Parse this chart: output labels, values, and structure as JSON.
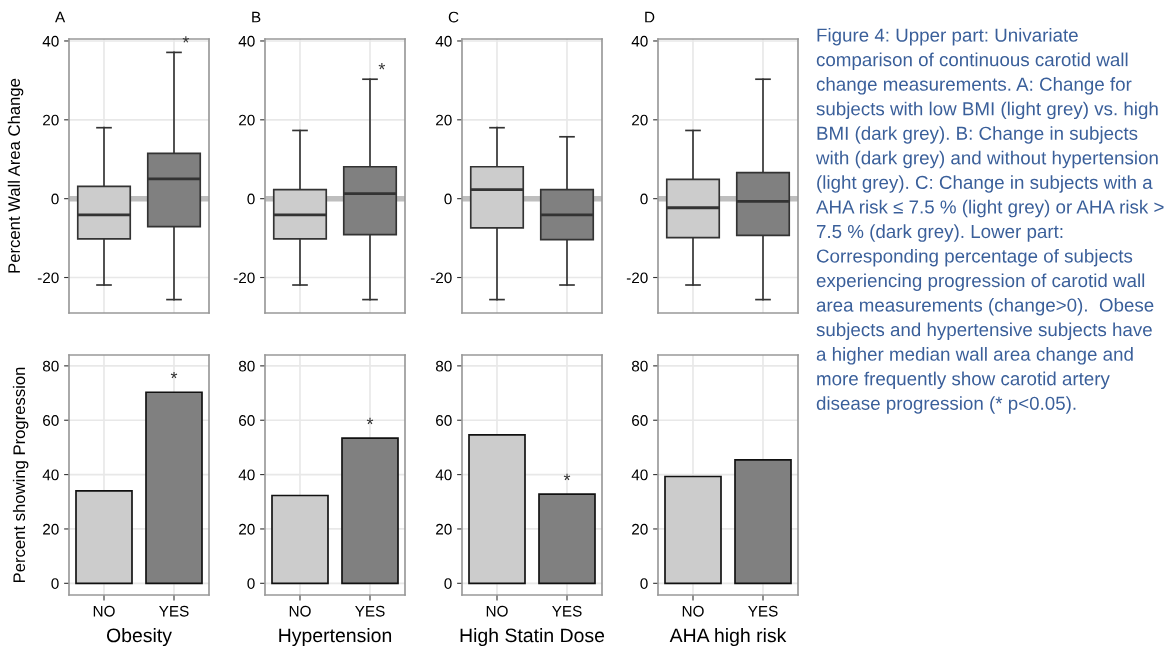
{
  "chart_data": [
    {
      "type": "box",
      "title": "A",
      "ylabel": "Percent Wall Area Change",
      "categories": [
        "NO",
        "YES"
      ],
      "colors": [
        "#cccccc",
        "#808080"
      ],
      "boxes": [
        {
          "low": -21.9,
          "q1": -10.2,
          "median": -4.1,
          "q3": 3.1,
          "high": 18
        },
        {
          "low": -25.6,
          "q1": -7.1,
          "median": 5,
          "q3": 11.5,
          "high": 37.1
        }
      ],
      "ylim": [
        -29,
        40.5
      ],
      "yticks": [
        -20,
        0,
        20,
        40
      ],
      "grid": true,
      "tick_labels": "y",
      "ref_lines": [
        {
          "axis": "y",
          "value": 0,
          "color": "#bebebe"
        }
      ],
      "annotations": [
        {
          "text": "*",
          "x": "YES",
          "y": 37.1
        }
      ]
    },
    {
      "type": "box",
      "title": "B",
      "categories": [
        "NO",
        "YES"
      ],
      "colors": [
        "#cccccc",
        "#808080"
      ],
      "boxes": [
        {
          "low": -21.9,
          "q1": -10.2,
          "median": -4.1,
          "q3": 2.3,
          "high": 17.3
        },
        {
          "low": -25.6,
          "q1": -9.1,
          "median": 1.3,
          "q3": 8.1,
          "high": 30.3
        }
      ],
      "ylim": [
        -29,
        40.5
      ],
      "yticks": [
        -20,
        0,
        20,
        40
      ],
      "grid": true,
      "tick_labels": "y",
      "ref_lines": [
        {
          "axis": "y",
          "value": 0,
          "color": "#bebebe"
        }
      ],
      "annotations": [
        {
          "text": "*",
          "x": "YES",
          "y": 30.3
        }
      ]
    },
    {
      "type": "box",
      "title": "C",
      "categories": [
        "NO",
        "YES"
      ],
      "colors": [
        "#cccccc",
        "#808080"
      ],
      "boxes": [
        {
          "low": -25.6,
          "q1": -7.4,
          "median": 2.3,
          "q3": 8.1,
          "high": 18
        },
        {
          "low": -21.9,
          "q1": -10.4,
          "median": -4.1,
          "q3": 2.3,
          "high": 15.7
        }
      ],
      "ylim": [
        -29,
        40.5
      ],
      "yticks": [
        -20,
        0,
        20,
        40
      ],
      "grid": true,
      "tick_labels": "y",
      "ref_lines": [
        {
          "axis": "y",
          "value": 0,
          "color": "#bebebe"
        }
      ]
    },
    {
      "type": "box",
      "title": "D",
      "categories": [
        "NO",
        "YES"
      ],
      "colors": [
        "#cccccc",
        "#808080"
      ],
      "boxes": [
        {
          "low": -21.9,
          "q1": -9.9,
          "median": -2.3,
          "q3": 4.9,
          "high": 17.3
        },
        {
          "low": -25.6,
          "q1": -9.3,
          "median": -0.7,
          "q3": 6.6,
          "high": 30.3
        }
      ],
      "ylim": [
        -29,
        40.5
      ],
      "yticks": [
        -20,
        0,
        20,
        40
      ],
      "grid": true,
      "tick_labels": "y",
      "ref_lines": [
        {
          "axis": "y",
          "value": 0,
          "color": "#bebebe"
        }
      ]
    },
    {
      "type": "bar",
      "xlabel": "Obesity",
      "ylabel": "Percent showing Progression",
      "categories": [
        "NO",
        "YES"
      ],
      "values": [
        34,
        70.3
      ],
      "colors": [
        "#cccccc",
        "#808080"
      ],
      "ylim": [
        -4.3,
        84
      ],
      "yticks": [
        0,
        20,
        40,
        60,
        80
      ],
      "grid": true,
      "annotations": [
        {
          "text": "*",
          "x": "YES",
          "y": 70.3
        }
      ]
    },
    {
      "type": "bar",
      "xlabel": "Hypertension",
      "categories": [
        "NO",
        "YES"
      ],
      "values": [
        32.3,
        53.4
      ],
      "colors": [
        "#cccccc",
        "#808080"
      ],
      "ylim": [
        -4.3,
        84
      ],
      "yticks": [
        0,
        20,
        40,
        60,
        80
      ],
      "grid": true,
      "annotations": [
        {
          "text": "*",
          "x": "YES",
          "y": 53.4
        }
      ]
    },
    {
      "type": "bar",
      "xlabel": "High Statin Dose",
      "categories": [
        "NO",
        "YES"
      ],
      "values": [
        54.6,
        32.8
      ],
      "colors": [
        "#cccccc",
        "#808080"
      ],
      "ylim": [
        -4.3,
        84
      ],
      "yticks": [
        0,
        20,
        40,
        60,
        80
      ],
      "grid": true,
      "annotations": [
        {
          "text": "*",
          "x": "YES",
          "y": 32.8
        }
      ]
    },
    {
      "type": "bar",
      "xlabel": "AHA high risk",
      "categories": [
        "NO",
        "YES"
      ],
      "values": [
        39.3,
        45.4
      ],
      "colors": [
        "#cccccc",
        "#808080"
      ],
      "ylim": [
        -4.3,
        84
      ],
      "yticks": [
        0,
        20,
        40,
        60,
        80
      ],
      "grid": true
    },
    {
      "type": "other",
      "annotations": [
        "Figure 4: Upper part: Univariate comparison of continuous carotid wall change measurements. A: Change for subjects with low BMI (light grey) vs. high BMI (dark grey). B: Change in subjects with (dark grey) and without hypertension (light grey). C: Change in subjects with a AHA risk ≤ 7.5 % (light grey) or AHA risk > 7.5 % (dark grey). Lower part: Corresponding percentage of subjects experiencing progression of carotid wall area measurements (change>0).  Obese subjects and hypertensive subjects have a higher median wall area change and more frequently show carotid artery disease progression (* p<0.05)."
      ]
    }
  ]
}
